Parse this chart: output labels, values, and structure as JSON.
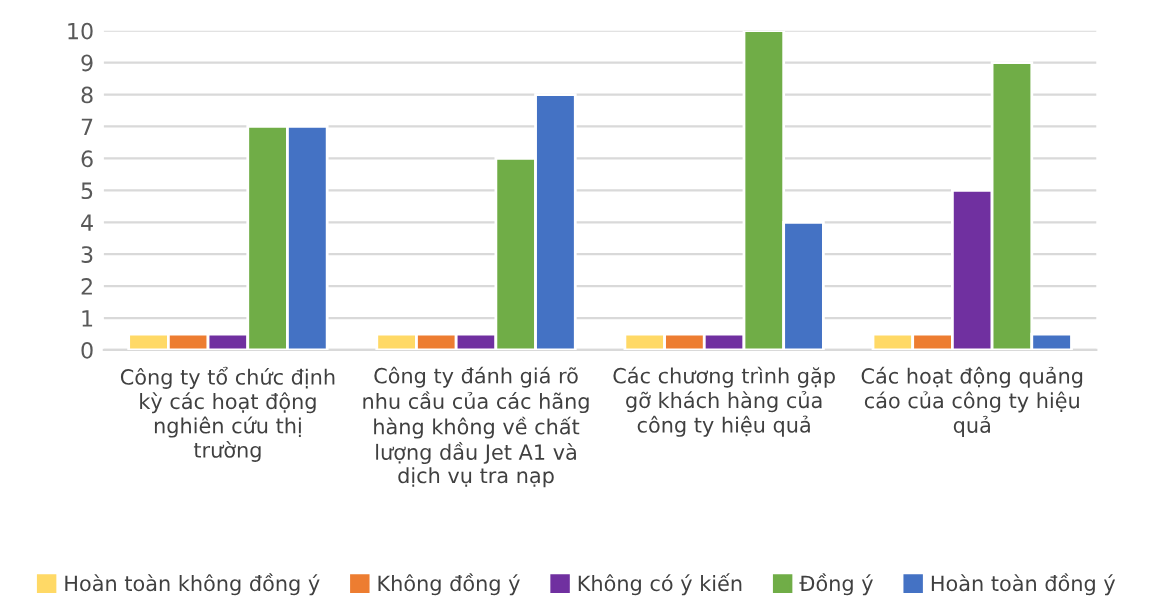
{
  "chart_data": {
    "type": "bar",
    "categories": [
      "Công ty tổ chức định kỳ các hoạt động nghiên cứu thị trường",
      "Công ty đánh giá rõ nhu cầu của các hãng hàng không về chất lượng dầu Jet A1 và dịch vụ tra nạp",
      "Các chương trình gặp gỡ khách hàng của công ty hiệu quả",
      "Các hoạt động quảng cáo của công ty hiệu quả"
    ],
    "series": [
      {
        "name": "Hoàn toàn không đồng ý",
        "color": "#ffd966",
        "values": [
          0.5,
          0.5,
          0.5,
          0.5
        ]
      },
      {
        "name": "Không đồng ý",
        "color": "#ed7d31",
        "values": [
          0.5,
          0.5,
          0.5,
          0.5
        ]
      },
      {
        "name": "Không có ý kiến",
        "color": "#7030a0",
        "values": [
          0.5,
          0.5,
          0.5,
          5
        ]
      },
      {
        "name": "Đồng ý",
        "color": "#70ad47",
        "values": [
          7,
          6,
          10,
          9
        ]
      },
      {
        "name": "Hoàn toàn đồng ý",
        "color": "#4472c4",
        "values": [
          7,
          8,
          4,
          0.5
        ]
      }
    ],
    "ylim": [
      0,
      10
    ],
    "yticks": [
      0,
      1,
      2,
      3,
      4,
      5,
      6,
      7,
      8,
      9,
      10
    ],
    "grid": "y",
    "legend": "bottom"
  }
}
